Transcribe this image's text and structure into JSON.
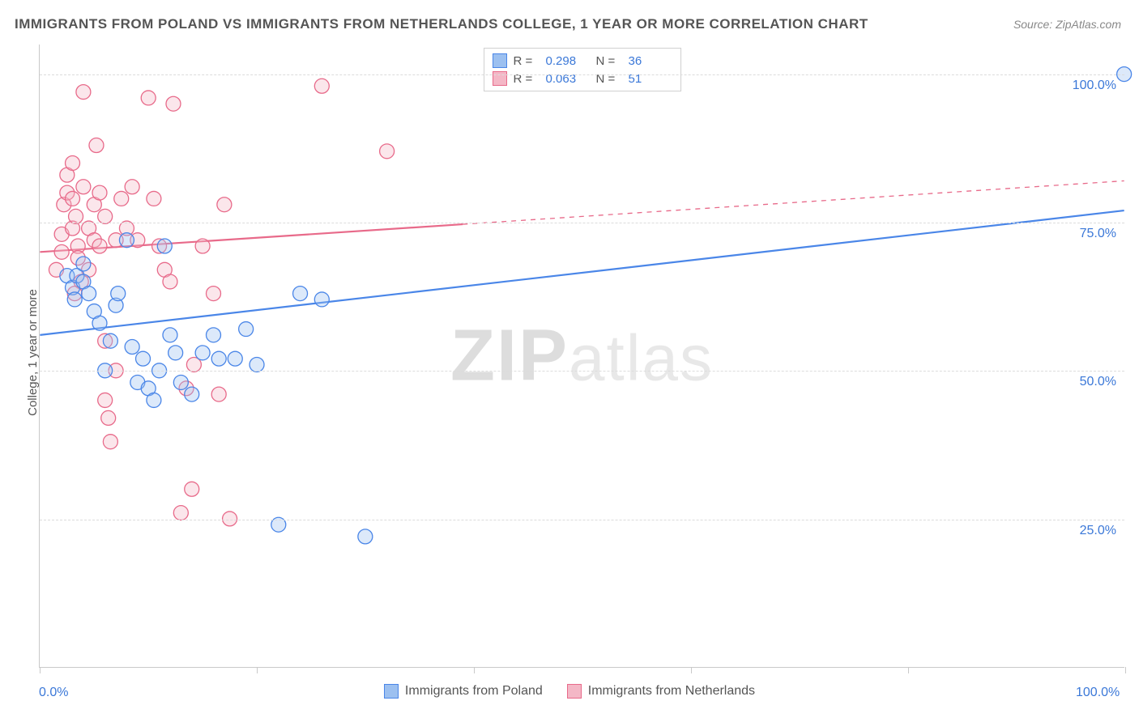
{
  "title": "IMMIGRANTS FROM POLAND VS IMMIGRANTS FROM NETHERLANDS COLLEGE, 1 YEAR OR MORE CORRELATION CHART",
  "source": "Source: ZipAtlas.com",
  "ylabel": "College, 1 year or more",
  "watermark_a": "ZIP",
  "watermark_b": "atlas",
  "chart": {
    "type": "scatter",
    "xlim": [
      0,
      100
    ],
    "ylim": [
      0,
      105
    ],
    "xtick_positions": [
      0,
      20,
      40,
      60,
      80,
      100
    ],
    "xtick_labels_shown": {
      "0": "0.0%",
      "100": "100.0%"
    },
    "ytick_positions": [
      25,
      50,
      75,
      100
    ],
    "ytick_labels": {
      "25": "25.0%",
      "50": "50.0%",
      "75": "75.0%",
      "100": "100.0%"
    },
    "grid_color": "#dcdcdc",
    "axis_color": "#c9c9c9",
    "background_color": "#ffffff",
    "marker_radius": 9,
    "marker_fill_opacity": 0.35,
    "marker_stroke_width": 1.3,
    "line_width": 2.2
  },
  "series": [
    {
      "key": "poland",
      "label": "Immigrants from Poland",
      "color_stroke": "#4a86e8",
      "color_fill": "#9cc0f0",
      "R": "0.298",
      "N": "36",
      "trend": {
        "x1": 0,
        "y1": 56,
        "x2": 100,
        "y2": 77,
        "dash_after_x": 100
      },
      "points": [
        [
          100,
          100
        ],
        [
          2.5,
          66
        ],
        [
          3,
          64
        ],
        [
          3.2,
          62
        ],
        [
          3.4,
          66
        ],
        [
          4,
          65
        ],
        [
          4.5,
          63
        ],
        [
          5,
          60
        ],
        [
          5.5,
          58
        ],
        [
          6,
          50
        ],
        [
          6.5,
          55
        ],
        [
          7,
          61
        ],
        [
          7.2,
          63
        ],
        [
          8,
          72
        ],
        [
          8.5,
          54
        ],
        [
          9,
          48
        ],
        [
          9.5,
          52
        ],
        [
          10,
          47
        ],
        [
          10.5,
          45
        ],
        [
          11,
          50
        ],
        [
          11.5,
          71
        ],
        [
          12,
          56
        ],
        [
          12.5,
          53
        ],
        [
          13,
          48
        ],
        [
          14,
          46
        ],
        [
          15,
          53
        ],
        [
          16,
          56
        ],
        [
          16.5,
          52
        ],
        [
          18,
          52
        ],
        [
          19,
          57
        ],
        [
          20,
          51
        ],
        [
          22,
          24
        ],
        [
          24,
          63
        ],
        [
          26,
          62
        ],
        [
          30,
          22
        ],
        [
          4,
          68
        ]
      ]
    },
    {
      "key": "netherlands",
      "label": "Immigrants from Netherlands",
      "color_stroke": "#e86a8a",
      "color_fill": "#f4b7c6",
      "R": "0.063",
      "N": "51",
      "trend": {
        "x1": 0,
        "y1": 70,
        "x2": 100,
        "y2": 82,
        "dash_after_x": 39
      },
      "points": [
        [
          1.5,
          67
        ],
        [
          2,
          70
        ],
        [
          2,
          73
        ],
        [
          2.2,
          78
        ],
        [
          2.5,
          80
        ],
        [
          2.5,
          83
        ],
        [
          3,
          85
        ],
        [
          3,
          79
        ],
        [
          3,
          74
        ],
        [
          3.3,
          76
        ],
        [
          3.5,
          71
        ],
        [
          3.5,
          69
        ],
        [
          3.8,
          65
        ],
        [
          4,
          81
        ],
        [
          4,
          97
        ],
        [
          4.5,
          67
        ],
        [
          4.5,
          74
        ],
        [
          5,
          78
        ],
        [
          5,
          72
        ],
        [
          5.2,
          88
        ],
        [
          5.5,
          71
        ],
        [
          5.5,
          80
        ],
        [
          6,
          76
        ],
        [
          6,
          45
        ],
        [
          6.3,
          42
        ],
        [
          6.5,
          38
        ],
        [
          7,
          50
        ],
        [
          7,
          72
        ],
        [
          7.5,
          79
        ],
        [
          8,
          74
        ],
        [
          8.5,
          81
        ],
        [
          9,
          72
        ],
        [
          10,
          96
        ],
        [
          10.5,
          79
        ],
        [
          11,
          71
        ],
        [
          11.5,
          67
        ],
        [
          12,
          65
        ],
        [
          12.3,
          95
        ],
        [
          13,
          26
        ],
        [
          13.5,
          47
        ],
        [
          14,
          30
        ],
        [
          14.2,
          51
        ],
        [
          15,
          71
        ],
        [
          16,
          63
        ],
        [
          16.5,
          46
        ],
        [
          17,
          78
        ],
        [
          17.5,
          25
        ],
        [
          26,
          98
        ],
        [
          32,
          87
        ],
        [
          6,
          55
        ],
        [
          3.2,
          63
        ]
      ]
    }
  ],
  "legend_top": {
    "r_label": "R =",
    "n_label": "N ="
  }
}
